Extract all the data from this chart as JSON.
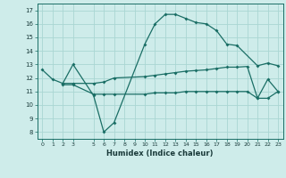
{
  "xlabel": "Humidex (Indice chaleur)",
  "bg_color": "#ceecea",
  "grid_color": "#aad6d3",
  "line_color": "#1a6e65",
  "x_ticks": [
    0,
    1,
    2,
    3,
    5,
    6,
    7,
    8,
    9,
    10,
    11,
    12,
    13,
    14,
    15,
    16,
    17,
    18,
    19,
    20,
    21,
    22,
    23
  ],
  "ylim": [
    7.5,
    17.5
  ],
  "yticks": [
    8,
    9,
    10,
    11,
    12,
    13,
    14,
    15,
    16,
    17
  ],
  "line1_x": [
    0,
    1,
    2,
    3,
    5,
    6,
    7,
    10,
    11,
    12,
    13,
    14,
    15,
    16,
    17,
    18,
    19,
    21,
    22,
    23
  ],
  "line1_y": [
    12.6,
    11.9,
    11.6,
    13.0,
    10.7,
    8.0,
    8.7,
    14.5,
    16.0,
    16.7,
    16.7,
    16.4,
    16.1,
    16.0,
    15.5,
    14.5,
    14.4,
    12.9,
    13.1,
    12.9
  ],
  "line2_x": [
    2,
    3,
    5,
    6,
    7,
    10,
    11,
    12,
    13,
    14,
    15,
    16,
    17,
    18,
    19,
    20,
    21,
    22,
    23
  ],
  "line2_y": [
    11.6,
    11.6,
    11.6,
    11.7,
    12.0,
    12.1,
    12.2,
    12.3,
    12.4,
    12.5,
    12.55,
    12.6,
    12.7,
    12.8,
    12.8,
    12.85,
    10.5,
    11.9,
    11.0
  ],
  "line3_x": [
    2,
    3,
    5,
    6,
    7,
    10,
    11,
    12,
    13,
    14,
    15,
    16,
    17,
    18,
    19,
    20,
    21,
    22,
    23
  ],
  "line3_y": [
    11.5,
    11.5,
    10.8,
    10.8,
    10.8,
    10.8,
    10.9,
    10.9,
    10.9,
    11.0,
    11.0,
    11.0,
    11.0,
    11.0,
    11.0,
    11.0,
    10.5,
    10.5,
    11.0
  ]
}
